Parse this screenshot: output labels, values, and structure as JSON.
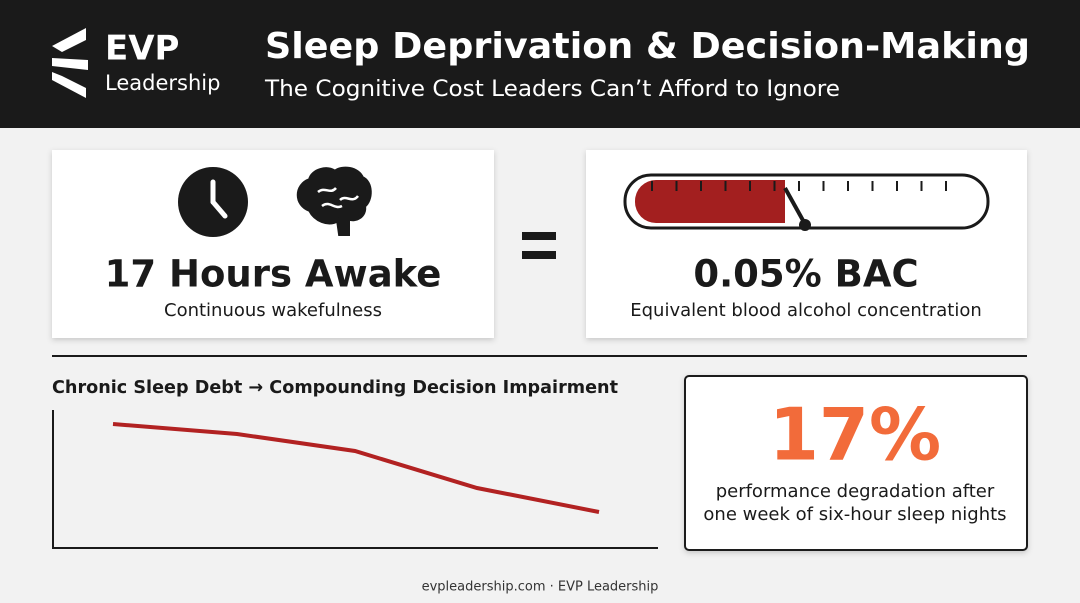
{
  "header": {
    "logo_title": "EVP",
    "logo_subtitle": "Leadership",
    "title": "Sleep Deprivation & Decision-Making",
    "subtitle": "The Cognitive Cost Leaders Can’t Afford to Ignore"
  },
  "comparison": {
    "left": {
      "headline": "17 Hours Awake",
      "caption": "Continuous wakefulness"
    },
    "right": {
      "headline": "0.05% BAC",
      "caption": "Equivalent blood alcohol concentration"
    }
  },
  "trend": {
    "title": "Chronic Sleep Debt → Compounding Decision Impairment"
  },
  "stat": {
    "value": "17%",
    "caption_lines": [
      "performance degradation after",
      "one week of six-hour sleep nights"
    ]
  },
  "footer": "evpleadership.com · EVP Leadership"
}
